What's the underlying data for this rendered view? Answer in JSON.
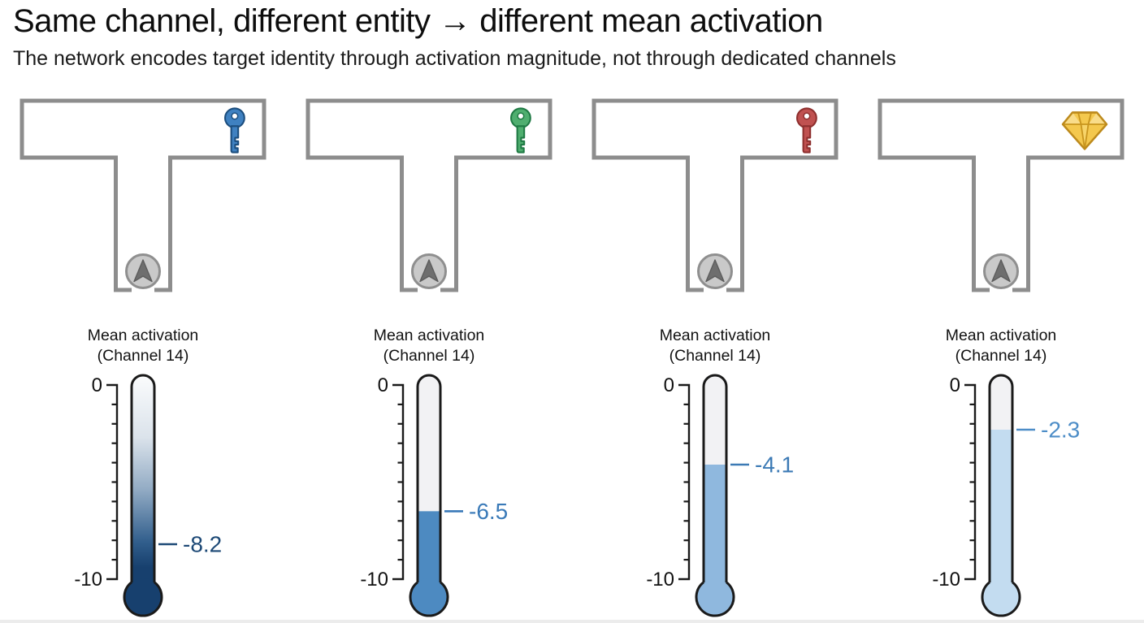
{
  "header": {
    "title": "Same channel, different entity → different mean activation",
    "subtitle": "The network encodes target identity through activation magnitude, not through dedicated channels"
  },
  "thermometer": {
    "label_line1": "Mean activation",
    "label_line2": "(Channel 14)",
    "scale_top_label": "0",
    "scale_bottom_label": "-10",
    "axis_max": 0,
    "axis_min": -10,
    "outline_color": "#1a1a1a",
    "empty_color": "#f2f2f4",
    "tick_count_between": 9
  },
  "maze": {
    "wall_color": "#8d8d8d",
    "agent": {
      "icon": "agent-arrow-icon",
      "circle_fill": "#c9c9c9",
      "circle_stroke": "#8f8f8f",
      "arrow_color": "#6e6e6e"
    }
  },
  "panels": [
    {
      "entity": "blue-key",
      "item": {
        "icon": "key-icon",
        "fill": "#3f81c1",
        "outline": "#1c4e7e"
      },
      "value": -8.2,
      "value_label": "-8.2",
      "fill_color": "#17406e",
      "fill_style": "gradient",
      "label_color": "#1d4976"
    },
    {
      "entity": "green-key",
      "item": {
        "icon": "key-icon",
        "fill": "#4fae6f",
        "outline": "#1f7a44"
      },
      "value": -6.5,
      "value_label": "-6.5",
      "fill_color": "#4d8ac1",
      "fill_style": "solid",
      "label_color": "#3a7ab8"
    },
    {
      "entity": "red-key",
      "item": {
        "icon": "key-icon",
        "fill": "#c05150",
        "outline": "#8e2f2e"
      },
      "value": -4.1,
      "value_label": "-4.1",
      "fill_color": "#8fb8de",
      "fill_style": "solid",
      "label_color": "#3c7ab5"
    },
    {
      "entity": "gem",
      "item": {
        "icon": "gem-icon",
        "fill": "#f4c84e",
        "outline": "#bd8a1c"
      },
      "value": -2.3,
      "value_label": "-2.3",
      "fill_color": "#c3dcf0",
      "fill_style": "solid",
      "label_color": "#4d8dc7"
    }
  ],
  "chart_data": {
    "type": "bar",
    "categories": [
      "blue key",
      "green key",
      "red key",
      "gem"
    ],
    "values": [
      -8.2,
      -6.5,
      -4.1,
      -2.3
    ],
    "title": "Mean activation (Channel 14)",
    "xlabel": "",
    "ylabel": "Mean activation (Channel 14)",
    "ylim": [
      -10,
      0
    ],
    "legend": "none",
    "grid": false,
    "layout_hint": "four thermometer gauges, 0 at top, -10 at bottom"
  }
}
